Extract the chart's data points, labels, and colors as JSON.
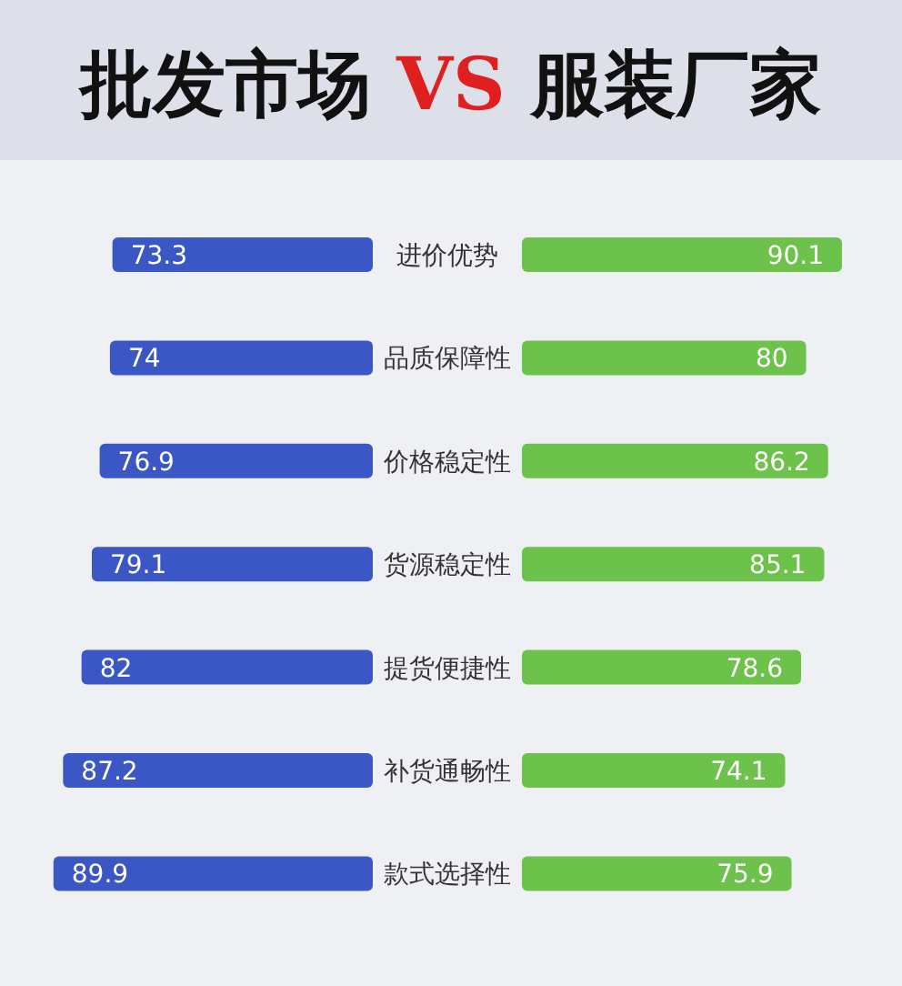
{
  "chart_data": [
    {
      "type": "bar",
      "orientation": "horizontal",
      "title": "批发市场 VS 服装厂家",
      "categories": [
        "进价优势",
        "品质保障性",
        "价格稳定性",
        "货源稳定性",
        "提货便捷性",
        "补货通畅性",
        "款式选择性"
      ],
      "series": [
        {
          "color": "#3b57c6",
          "values": [
            73.3,
            74,
            76.9,
            79.1,
            82,
            87.2,
            89.9
          ]
        }
      ],
      "data_labels": true
    },
    {
      "type": "bar",
      "orientation": "horizontal",
      "categories": [
        null,
        null,
        null,
        null,
        null,
        null,
        null
      ],
      "series": [
        {
          "color": "#6cc24a",
          "values": [
            90.1,
            80,
            86.2,
            85.1,
            78.6,
            74.1,
            75.9
          ]
        }
      ],
      "data_labels": true
    }
  ]
}
